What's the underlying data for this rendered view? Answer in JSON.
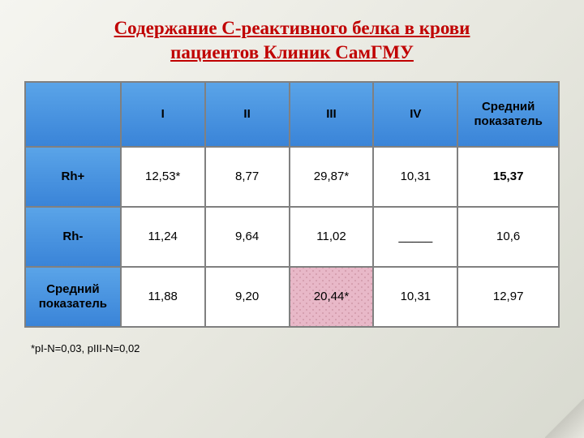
{
  "title_line1": "Содержание С-реактивного белка в крови",
  "title_line2": "пациентов Клиник СамГМУ",
  "headers": {
    "c1": "I",
    "c2": "II",
    "c3": "III",
    "c4": "IV",
    "c5a": "Средний",
    "c5b": "показатель"
  },
  "row1": {
    "label": "Rh+",
    "v1": "12,53*",
    "v2": "8,77",
    "v3": "29,87*",
    "v4": "10,31",
    "v5": "15,37"
  },
  "row2": {
    "label": "Rh-",
    "v1": "11,24",
    "v2": "9,64",
    "v3": "11,02",
    "v4": "_____",
    "v5": "10,6"
  },
  "row3": {
    "label_a": "Средний",
    "label_b": "показатель",
    "v1": "11,88",
    "v2": "9,20",
    "v3": "20,44*",
    "v4": "10,31",
    "v5": "12,97"
  },
  "footnote": "*pI-N=0,03, pIII-N=0,02",
  "colors": {
    "title": "#c00000",
    "header_blue_top": "#5aa4e8",
    "header_blue_bottom": "#3a84d8",
    "cell_bg": "#ffffff",
    "border": "#808080",
    "pink": "#e8b8c8",
    "bg_top": "#f5f5f0",
    "bg_bottom": "#d8dad0"
  },
  "table": {
    "type": "table",
    "columns": [
      "",
      "I",
      "II",
      "III",
      "IV",
      "Средний показатель"
    ],
    "rows": [
      [
        "Rh+",
        "12,53*",
        "8,77",
        "29,87*",
        "10,31",
        "15,37"
      ],
      [
        "Rh-",
        "11,24",
        "9,64",
        "11,02",
        "_____",
        "10,6"
      ],
      [
        "Средний показатель",
        "11,88",
        "9,20",
        "20,44*",
        "10,31",
        "12,97"
      ]
    ],
    "header_fill": "#4a94e0",
    "left_col_fill": "#4a94e0",
    "highlighted_cell": {
      "row": 2,
      "col": 3,
      "fill": "#e8b8c8"
    },
    "bold_cells": [
      [
        0,
        5
      ]
    ],
    "border_color": "#808080",
    "font_size": 15,
    "header_font_weight": "bold"
  }
}
